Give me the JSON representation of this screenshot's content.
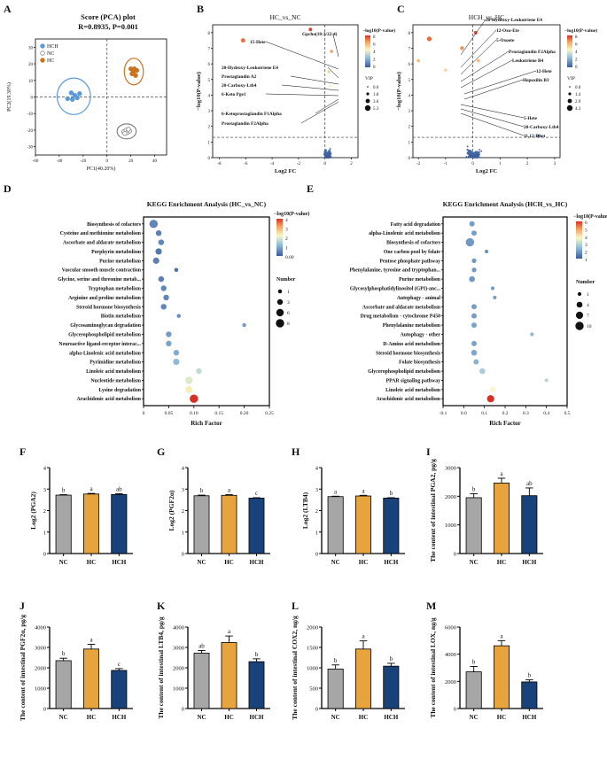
{
  "panel_letters": [
    "A",
    "B",
    "C",
    "D",
    "E",
    "F",
    "G",
    "H",
    "I",
    "J",
    "K",
    "L",
    "M"
  ],
  "colors": {
    "nc": "#a6a6a6",
    "hc": "#e7a33c",
    "hch": "#19417a",
    "pca_hch": "#5b9bd5",
    "pca_nc": "#808080",
    "pca_hc": "#c8741e",
    "sig": "#d73027"
  },
  "pca": {
    "title": "Score (PCA) plot",
    "stats": "R=0.8935, P=0.001",
    "xlabel": "PC1(40.20%)",
    "ylabel": "PC2(19.30%)",
    "xticks": [
      "-60",
      "-40",
      "-20",
      "0",
      "20",
      "40"
    ],
    "yticks": [
      "30",
      "20",
      "10",
      "0",
      "-10",
      "-20",
      "-30"
    ],
    "legend": [
      "HCH",
      "NC",
      "HC"
    ],
    "groups": [
      {
        "name": "HCH",
        "points": [
          [
            -33,
            -1
          ],
          [
            -29,
            -1.5
          ],
          [
            -27,
            1
          ],
          [
            -23,
            2
          ],
          [
            -30,
            2.5
          ],
          [
            -25,
            -0.5
          ]
        ]
      },
      {
        "name": "NC",
        "points": [
          [
            14,
            -21
          ],
          [
            16,
            -20
          ],
          [
            17,
            -21.5
          ],
          [
            19,
            -20.5
          ],
          [
            15,
            -22
          ],
          [
            18,
            -19.5
          ]
        ]
      },
      {
        "name": "HC",
        "points": [
          [
            20,
            17
          ],
          [
            22,
            15
          ],
          [
            23,
            17
          ],
          [
            24,
            13
          ],
          [
            25,
            16
          ],
          [
            21,
            14
          ]
        ]
      }
    ]
  },
  "volcano_hc_nc": {
    "title": "HC_vs_NC",
    "xlabel": "Log2 FC",
    "ylabel": "−log10(P-value)",
    "xticks": [
      "-8",
      "-6",
      "-4",
      "-2",
      "0",
      "2"
    ],
    "yticks": [
      "0",
      "1",
      "2",
      "3",
      "4",
      "5",
      "6",
      "7",
      "8"
    ],
    "cb_title": "−log10(P-value)",
    "cb_ticks": [
      "8",
      "6",
      "4",
      "2",
      "0"
    ],
    "vip_title": "VIP",
    "vip_ticks": [
      "0.0",
      "1.8",
      "3.6",
      "5.3"
    ],
    "labels": [
      "Gpcho(18:3/22:4)",
      "15-Hete",
      "20-Hydroxy-Leukotriene E4",
      "Prostaglandin A2",
      "20-Carboxy-Ltb4",
      "6-Keto Pge1",
      "6-Ketoprostaglandin F1Alpha",
      "Prostaglandin F2Alpha"
    ]
  },
  "volcano_hch_hc": {
    "title": "HCH_vs_HC",
    "xlabel": "Log2 FC",
    "ylabel": "−log10(P-value)",
    "xticks": [
      "-2",
      "-1",
      "0",
      "1",
      "2",
      "3"
    ],
    "yticks": [
      "0",
      "1",
      "2",
      "3",
      "4",
      "5",
      "6",
      "7",
      "8"
    ],
    "cb_title": "−log10(P-value)",
    "cb_ticks": [
      "8",
      "6",
      "4",
      "2",
      "0"
    ],
    "vip_title": "VIP",
    "vip_ticks": [
      "0.0",
      "1.4",
      "2.9",
      "4.3"
    ],
    "labels": [
      "20-Hydroxy-Leukotriene E4",
      "12-Oxo-Ete",
      "5-Oxoete",
      "Prostaglandin F2Alpha",
      "Leukotriene B4",
      "12-Hete",
      "Hepoxilin B3",
      "5-Hete",
      "20-Carboxy-Ltb4",
      "11,12-Dhet"
    ]
  },
  "kegg_d": {
    "title": "KEGG Enrichment Analysis (HC_vs_NC)",
    "xlabel": "Rich Factor",
    "xticks": [
      "0",
      "0.05",
      "0.10",
      "0.15",
      "0.20",
      "0.25"
    ],
    "cb_title": "−log10(P-value)",
    "cb_ticks": [
      "4",
      "3",
      "2",
      "1",
      "0.00"
    ],
    "num_title": "Number",
    "num_ticks": [
      "1",
      "3",
      "6",
      "8"
    ],
    "pathways": [
      {
        "name": "Biosynthesis of cofactors",
        "rf": 0.02,
        "num": 8,
        "p": 0.6
      },
      {
        "name": "Cysteine and methionine metabolism",
        "rf": 0.03,
        "num": 3,
        "p": 0.5
      },
      {
        "name": "Ascorbate and aldarate metabolism",
        "rf": 0.035,
        "num": 3,
        "p": 0.6
      },
      {
        "name": "Porphyrin metabolism",
        "rf": 0.03,
        "num": 4,
        "p": 0.4
      },
      {
        "name": "Purine metabolism",
        "rf": 0.025,
        "num": 4,
        "p": 0.5
      },
      {
        "name": "Vascular smooth muscle contraction",
        "rf": 0.065,
        "num": 1,
        "p": 0.3
      },
      {
        "name": "Glycine, serine and threonine metab...",
        "rf": 0.035,
        "num": 3,
        "p": 0.5
      },
      {
        "name": "Tryptophan metabolism",
        "rf": 0.04,
        "num": 3,
        "p": 0.6
      },
      {
        "name": "Arginine and proline metabolism",
        "rf": 0.045,
        "num": 3,
        "p": 0.6
      },
      {
        "name": "Steroid hormone biosynthesis",
        "rf": 0.04,
        "num": 3,
        "p": 0.6
      },
      {
        "name": "Biotin metabolism",
        "rf": 0.07,
        "num": 1,
        "p": 0.7
      },
      {
        "name": "Glycosaminoglycan degradation",
        "rf": 0.2,
        "num": 1,
        "p": 0.9
      },
      {
        "name": "Glycerophospholipid metabolism",
        "rf": 0.05,
        "num": 3,
        "p": 0.9
      },
      {
        "name": "Neuroactive ligand-receptor interac...",
        "rf": 0.05,
        "num": 3,
        "p": 1.0
      },
      {
        "name": "alpha-Linolenic acid metabolism",
        "rf": 0.065,
        "num": 3,
        "p": 1.1
      },
      {
        "name": "Pyrimidine metabolism",
        "rf": 0.065,
        "num": 4,
        "p": 1.3
      },
      {
        "name": "Linoleic acid metabolism",
        "rf": 0.11,
        "num": 3,
        "p": 1.9
      },
      {
        "name": "Nucleotide metabolism",
        "rf": 0.09,
        "num": 6,
        "p": 2.2
      },
      {
        "name": "Lysine degradation",
        "rf": 0.09,
        "num": 5,
        "p": 2.6
      },
      {
        "name": "Arachidonic acid metabolism",
        "rf": 0.1,
        "num": 8,
        "p": 4.5
      }
    ]
  },
  "kegg_e": {
    "title": "KEGG Enrichment Analysis (HCH_vs_HC)",
    "xlabel": "Rich Factor",
    "xticks": [
      "-0.1",
      "0.0",
      "0.1",
      "0.2",
      "0.3",
      "0.4",
      "0.5"
    ],
    "cb_title": "−log10(P-value)",
    "cb_ticks": [
      "6",
      "5",
      "4",
      "3",
      "2",
      "1"
    ],
    "num_title": "Number",
    "num_ticks": [
      "1",
      "4",
      "7",
      "10"
    ],
    "pathways": [
      {
        "name": "Fatty acid degradation",
        "rf": 0.04,
        "num": 3,
        "p": 1.2
      },
      {
        "name": "alpha-Linolenic acid metabolism",
        "rf": 0.05,
        "num": 3,
        "p": 1.2
      },
      {
        "name": "Biosynthesis of cofactors",
        "rf": 0.03,
        "num": 10,
        "p": 1.1
      },
      {
        "name": "One carbon pool by folate",
        "rf": 0.11,
        "num": 1,
        "p": 1.0
      },
      {
        "name": "Pentose phosphate pathway",
        "rf": 0.05,
        "num": 2,
        "p": 1.1
      },
      {
        "name": "Phenylalanine, tyrosine and tryptophan...",
        "rf": 0.05,
        "num": 2,
        "p": 1.1
      },
      {
        "name": "Purine metabolism",
        "rf": 0.04,
        "num": 4,
        "p": 1.1
      },
      {
        "name": "Glycosylphosphatidylinositol (GPI)-anc...",
        "rf": 0.14,
        "num": 1,
        "p": 1.2
      },
      {
        "name": "Autophagy - animal",
        "rf": 0.15,
        "num": 1,
        "p": 1.2
      },
      {
        "name": "Ascorbate and aldarate metabolism",
        "rf": 0.05,
        "num": 3,
        "p": 1.2
      },
      {
        "name": "Drug metabolism - cytochrome P450",
        "rf": 0.05,
        "num": 3,
        "p": 1.2
      },
      {
        "name": "Phenylalanine metabolism",
        "rf": 0.05,
        "num": 3,
        "p": 1.3
      },
      {
        "name": "Autophagy - other",
        "rf": 0.33,
        "num": 1,
        "p": 1.7
      },
      {
        "name": "D-Amino acid metabolism",
        "rf": 0.05,
        "num": 3,
        "p": 1.3
      },
      {
        "name": "Steroid hormone biosynthesis",
        "rf": 0.05,
        "num": 4,
        "p": 1.4
      },
      {
        "name": "Folate biosynthesis",
        "rf": 0.06,
        "num": 3,
        "p": 1.6
      },
      {
        "name": "Glycerophospholipid metabolism",
        "rf": 0.09,
        "num": 4,
        "p": 2.2
      },
      {
        "name": "PPAR signaling pathway",
        "rf": 0.4,
        "num": 1,
        "p": 2.4
      },
      {
        "name": "Linoleic acid metabolism",
        "rf": 0.14,
        "num": 3,
        "p": 3.3
      },
      {
        "name": "Arachidonic acid metabolism",
        "rf": 0.13,
        "num": 7,
        "p": 6.0
      }
    ]
  },
  "chart_data": [
    {
      "id": "F",
      "type": "bar",
      "ylabel": "Log2 (PGA2)",
      "categories": [
        "NC",
        "HC",
        "HCH"
      ],
      "values": [
        2.72,
        2.77,
        2.75
      ],
      "errors": [
        0.02,
        0.03,
        0.04
      ],
      "letters": [
        "b",
        "a",
        "ab"
      ],
      "ylim": [
        0,
        4
      ],
      "yticks": [
        "0",
        "1",
        "2",
        "3",
        "4"
      ]
    },
    {
      "id": "G",
      "type": "bar",
      "ylabel": "Log2 (PGF2α)",
      "categories": [
        "NC",
        "HC",
        "HCH"
      ],
      "values": [
        2.69,
        2.71,
        2.58
      ],
      "errors": [
        0.03,
        0.03,
        0.02
      ],
      "letters": [
        "b",
        "a",
        "c"
      ],
      "ylim": [
        0,
        4
      ],
      "yticks": [
        "0",
        "1",
        "2",
        "3",
        "4"
      ]
    },
    {
      "id": "H",
      "type": "bar",
      "ylabel": "Log2 (LTB4)",
      "categories": [
        "NC",
        "HC",
        "HCH"
      ],
      "values": [
        2.65,
        2.68,
        2.58
      ],
      "errors": [
        0.02,
        0.03,
        0.02
      ],
      "letters": [
        "a",
        "a",
        "b"
      ],
      "ylim": [
        0,
        4
      ],
      "yticks": [
        "0",
        "1",
        "2",
        "3",
        "4"
      ]
    },
    {
      "id": "I",
      "type": "bar",
      "ylabel": "The content of intestinal PGA2, pg/g",
      "categories": [
        "NC",
        "HC",
        "HCH"
      ],
      "values": [
        1950,
        2460,
        2020
      ],
      "errors": [
        140,
        170,
        270
      ],
      "letters": [
        "b",
        "a",
        "ab"
      ],
      "ylim": [
        0,
        3000
      ],
      "yticks": [
        "0",
        "1000",
        "2000",
        "3000"
      ]
    },
    {
      "id": "J",
      "type": "bar",
      "ylabel": "The content of intestinal PGF2α, pg/g",
      "categories": [
        "NC",
        "HC",
        "HCH"
      ],
      "values": [
        2350,
        2920,
        1870
      ],
      "errors": [
        120,
        230,
        90
      ],
      "letters": [
        "b",
        "a",
        "c"
      ],
      "ylim": [
        0,
        4000
      ],
      "yticks": [
        "0",
        "1000",
        "2000",
        "3000",
        "4000"
      ]
    },
    {
      "id": "K",
      "type": "bar",
      "ylabel": "The content of intestinal LTB4, pg/g",
      "categories": [
        "NC",
        "HC",
        "HCH"
      ],
      "values": [
        2720,
        3240,
        2300
      ],
      "errors": [
        130,
        320,
        140
      ],
      "letters": [
        "ab",
        "a",
        "b"
      ],
      "ylim": [
        0,
        4000
      ],
      "yticks": [
        "0",
        "1000",
        "2000",
        "3000",
        "4000"
      ]
    },
    {
      "id": "L",
      "type": "bar",
      "ylabel": "The content of intestinal COX2, ng/g",
      "categories": [
        "NC",
        "HC",
        "HCH"
      ],
      "values": [
        970,
        1460,
        1040
      ],
      "errors": [
        100,
        200,
        70
      ],
      "letters": [
        "b",
        "a",
        "b"
      ],
      "ylim": [
        0,
        2000
      ],
      "yticks": [
        "0",
        "500",
        "1000",
        "1500",
        "2000"
      ]
    },
    {
      "id": "M",
      "type": "bar",
      "ylabel": "The content of intestinal LOX, ng/g",
      "categories": [
        "NC",
        "HC",
        "HCH"
      ],
      "values": [
        2700,
        4620,
        1960
      ],
      "errors": [
        400,
        380,
        150
      ],
      "letters": [
        "b",
        "a",
        "b"
      ],
      "ylim": [
        0,
        6000
      ],
      "yticks": [
        "0",
        "2000",
        "4000",
        "6000"
      ]
    }
  ]
}
